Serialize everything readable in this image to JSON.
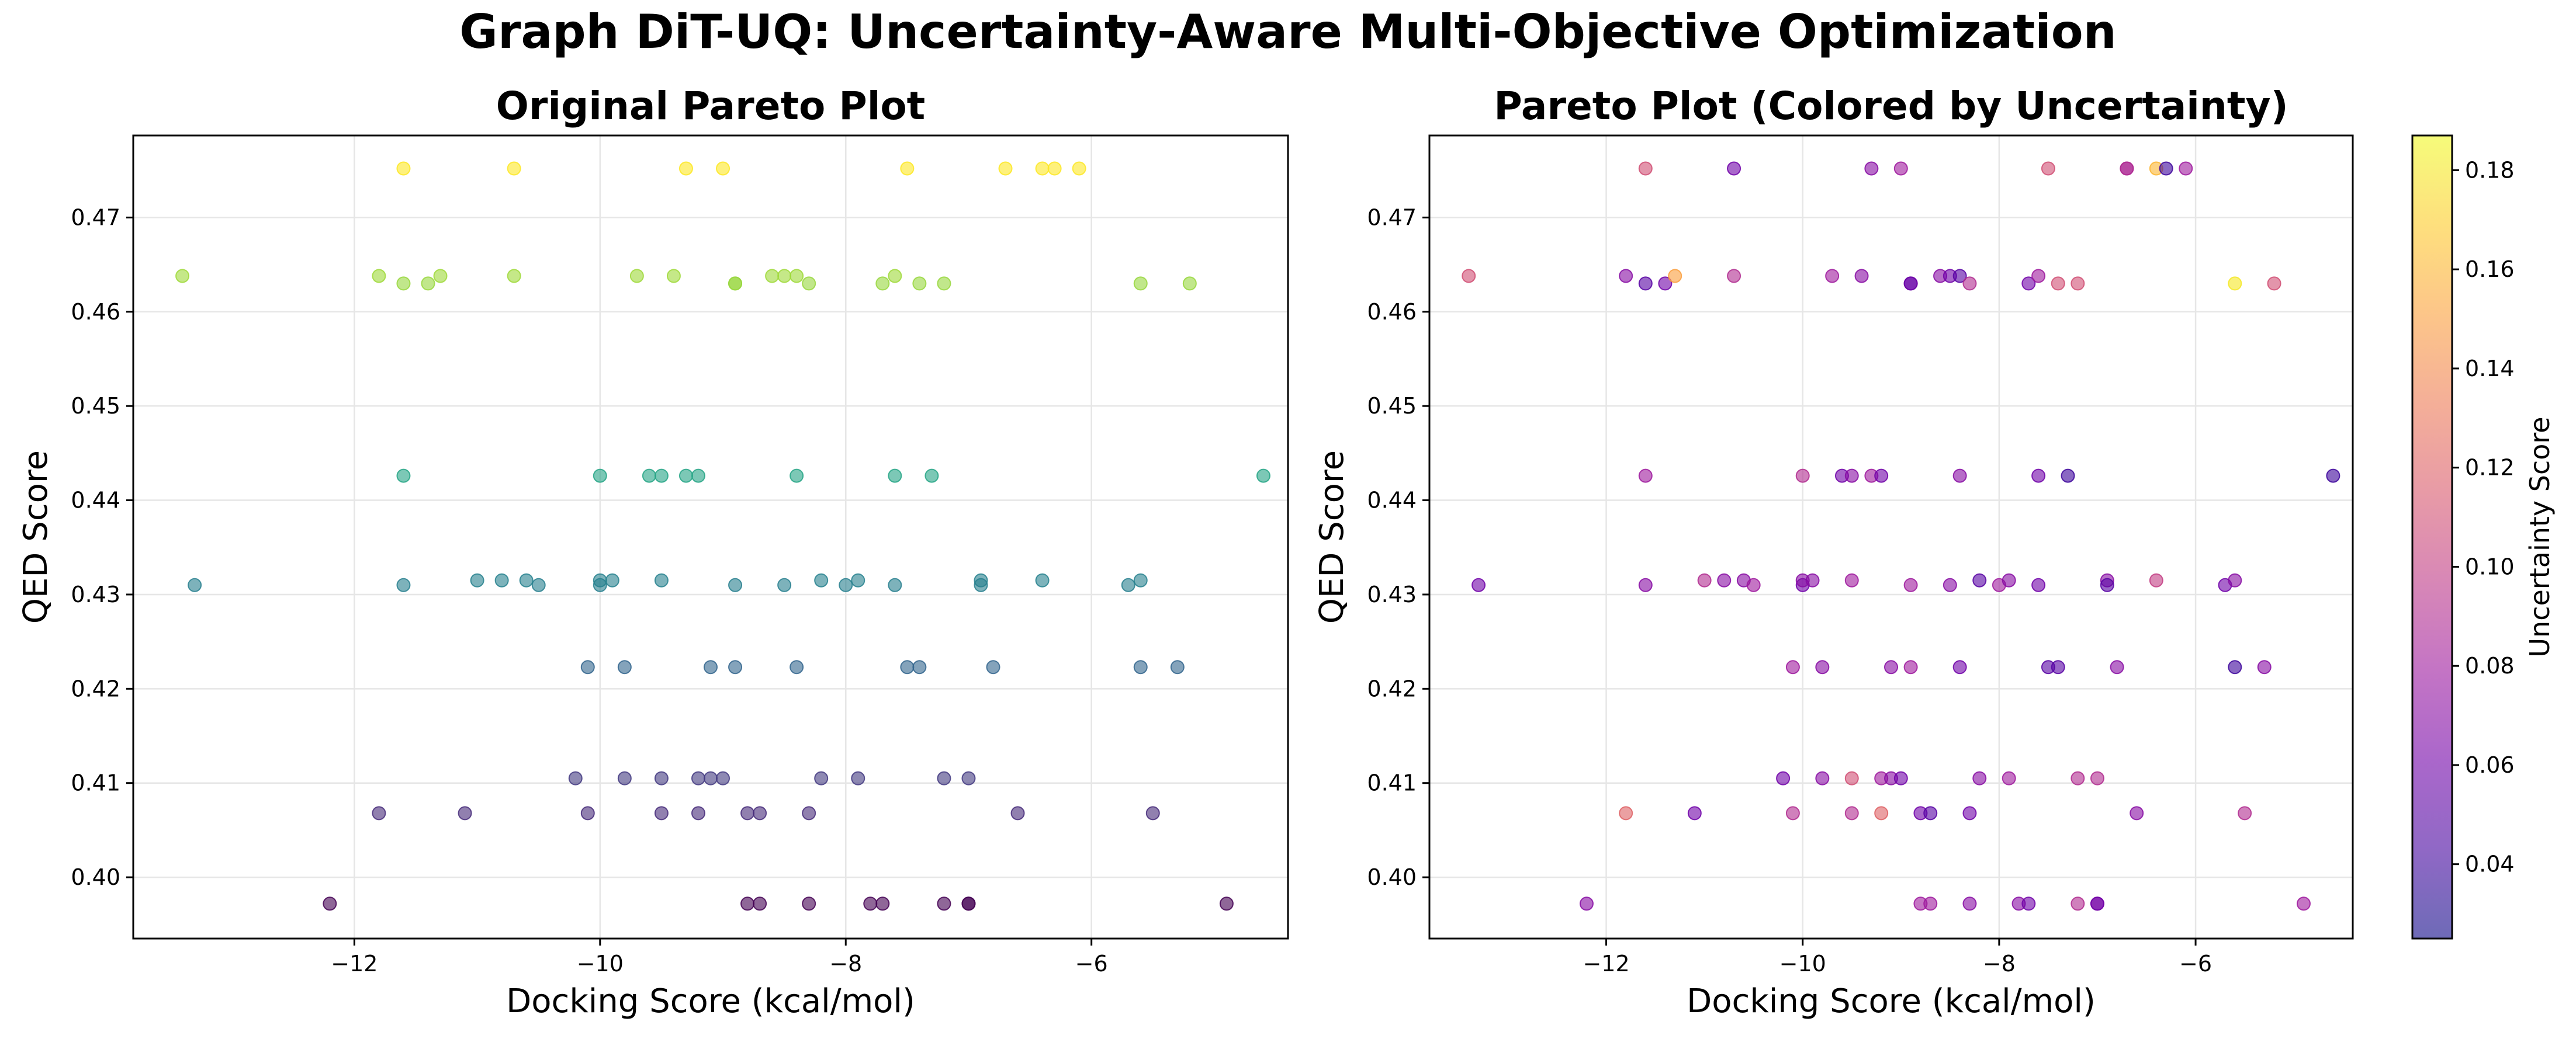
{
  "figure": {
    "title": "Graph DiT-UQ: Uncertainty-Aware Multi-Objective Optimization"
  },
  "colors": {
    "viridis": [
      "#440154",
      "#482878",
      "#3e4989",
      "#31688e",
      "#26828e",
      "#1f9e89",
      "#35b779",
      "#6ece58",
      "#b5de2b",
      "#fde725"
    ],
    "plasma": [
      "#0d0887",
      "#46039f",
      "#7201a8",
      "#9c179e",
      "#bd3786",
      "#d8576b",
      "#ed7953",
      "#fb9f3a",
      "#fdca26",
      "#f0f921"
    ],
    "axes_edge": "#000000",
    "grid": "#e6e6e6"
  },
  "chart_data": [
    {
      "type": "scatter",
      "title": "Original Pareto Plot",
      "xlabel": "Docking Score (kcal/mol)",
      "ylabel": "QED Score",
      "xlim": [
        -13.8,
        -4.4
      ],
      "ylim": [
        0.3935,
        0.4787
      ],
      "xticks": [
        -12,
        -10,
        -8,
        -6
      ],
      "xtick_labels": [
        "−12",
        "−10",
        "−8",
        "−6"
      ],
      "yticks": [
        0.4,
        0.41,
        0.42,
        0.43,
        0.44,
        0.45,
        0.46,
        0.47
      ],
      "ytick_labels": [
        "0.40",
        "0.41",
        "0.42",
        "0.43",
        "0.44",
        "0.45",
        "0.46",
        "0.47"
      ],
      "grid": true,
      "color_by": "y",
      "colormap": "viridis",
      "points": [
        {
          "x": -11.6,
          "y": 0.4752
        },
        {
          "x": -10.7,
          "y": 0.4752
        },
        {
          "x": -9.3,
          "y": 0.4752
        },
        {
          "x": -9.0,
          "y": 0.4752
        },
        {
          "x": -7.5,
          "y": 0.4752
        },
        {
          "x": -6.7,
          "y": 0.4752
        },
        {
          "x": -6.4,
          "y": 0.4752
        },
        {
          "x": -6.3,
          "y": 0.4752
        },
        {
          "x": -6.1,
          "y": 0.4752
        },
        {
          "x": -13.4,
          "y": 0.4638
        },
        {
          "x": -11.8,
          "y": 0.4638
        },
        {
          "x": -11.6,
          "y": 0.463
        },
        {
          "x": -11.4,
          "y": 0.463
        },
        {
          "x": -11.3,
          "y": 0.4638
        },
        {
          "x": -10.7,
          "y": 0.4638
        },
        {
          "x": -9.7,
          "y": 0.4638
        },
        {
          "x": -9.4,
          "y": 0.4638
        },
        {
          "x": -8.9,
          "y": 0.463
        },
        {
          "x": -8.9,
          "y": 0.463
        },
        {
          "x": -8.6,
          "y": 0.4638
        },
        {
          "x": -8.5,
          "y": 0.4638
        },
        {
          "x": -8.4,
          "y": 0.4638
        },
        {
          "x": -8.3,
          "y": 0.463
        },
        {
          "x": -7.7,
          "y": 0.463
        },
        {
          "x": -7.6,
          "y": 0.4638
        },
        {
          "x": -7.4,
          "y": 0.463
        },
        {
          "x": -7.2,
          "y": 0.463
        },
        {
          "x": -5.6,
          "y": 0.463
        },
        {
          "x": -5.2,
          "y": 0.463
        },
        {
          "x": -11.6,
          "y": 0.4426
        },
        {
          "x": -10.0,
          "y": 0.4426
        },
        {
          "x": -9.6,
          "y": 0.4426
        },
        {
          "x": -9.5,
          "y": 0.4426
        },
        {
          "x": -9.3,
          "y": 0.4426
        },
        {
          "x": -9.2,
          "y": 0.4426
        },
        {
          "x": -8.4,
          "y": 0.4426
        },
        {
          "x": -7.6,
          "y": 0.4426
        },
        {
          "x": -7.3,
          "y": 0.4426
        },
        {
          "x": -4.6,
          "y": 0.4426
        },
        {
          "x": -13.3,
          "y": 0.431
        },
        {
          "x": -11.6,
          "y": 0.431
        },
        {
          "x": -11.0,
          "y": 0.4315
        },
        {
          "x": -10.8,
          "y": 0.4315
        },
        {
          "x": -10.6,
          "y": 0.4315
        },
        {
          "x": -10.5,
          "y": 0.431
        },
        {
          "x": -10.0,
          "y": 0.431
        },
        {
          "x": -10.0,
          "y": 0.4315
        },
        {
          "x": -9.9,
          "y": 0.4315
        },
        {
          "x": -9.5,
          "y": 0.4315
        },
        {
          "x": -8.9,
          "y": 0.431
        },
        {
          "x": -8.5,
          "y": 0.431
        },
        {
          "x": -8.2,
          "y": 0.4315
        },
        {
          "x": -8.0,
          "y": 0.431
        },
        {
          "x": -7.9,
          "y": 0.4315
        },
        {
          "x": -7.6,
          "y": 0.431
        },
        {
          "x": -6.9,
          "y": 0.4315
        },
        {
          "x": -6.9,
          "y": 0.431
        },
        {
          "x": -6.4,
          "y": 0.4315
        },
        {
          "x": -5.7,
          "y": 0.431
        },
        {
          "x": -5.6,
          "y": 0.4315
        },
        {
          "x": -10.1,
          "y": 0.4223
        },
        {
          "x": -9.8,
          "y": 0.4223
        },
        {
          "x": -9.1,
          "y": 0.4223
        },
        {
          "x": -8.9,
          "y": 0.4223
        },
        {
          "x": -8.4,
          "y": 0.4223
        },
        {
          "x": -7.5,
          "y": 0.4223
        },
        {
          "x": -7.4,
          "y": 0.4223
        },
        {
          "x": -6.8,
          "y": 0.4223
        },
        {
          "x": -5.6,
          "y": 0.4223
        },
        {
          "x": -5.3,
          "y": 0.4223
        },
        {
          "x": -10.2,
          "y": 0.4105
        },
        {
          "x": -9.8,
          "y": 0.4105
        },
        {
          "x": -9.5,
          "y": 0.4105
        },
        {
          "x": -9.2,
          "y": 0.4105
        },
        {
          "x": -9.1,
          "y": 0.4105
        },
        {
          "x": -9.0,
          "y": 0.4105
        },
        {
          "x": -8.2,
          "y": 0.4105
        },
        {
          "x": -7.9,
          "y": 0.4105
        },
        {
          "x": -7.2,
          "y": 0.4105
        },
        {
          "x": -7.0,
          "y": 0.4105
        },
        {
          "x": -11.8,
          "y": 0.4068
        },
        {
          "x": -11.1,
          "y": 0.4068
        },
        {
          "x": -10.1,
          "y": 0.4068
        },
        {
          "x": -9.5,
          "y": 0.4068
        },
        {
          "x": -9.2,
          "y": 0.4068
        },
        {
          "x": -8.8,
          "y": 0.4068
        },
        {
          "x": -8.7,
          "y": 0.4068
        },
        {
          "x": -8.3,
          "y": 0.4068
        },
        {
          "x": -6.6,
          "y": 0.4068
        },
        {
          "x": -5.5,
          "y": 0.4068
        },
        {
          "x": -12.2,
          "y": 0.3972
        },
        {
          "x": -8.8,
          "y": 0.3972
        },
        {
          "x": -8.7,
          "y": 0.3972
        },
        {
          "x": -8.3,
          "y": 0.3972
        },
        {
          "x": -7.8,
          "y": 0.3972
        },
        {
          "x": -7.7,
          "y": 0.3972
        },
        {
          "x": -7.2,
          "y": 0.3972
        },
        {
          "x": -7.0,
          "y": 0.3972
        },
        {
          "x": -7.0,
          "y": 0.3972
        },
        {
          "x": -4.9,
          "y": 0.3972
        }
      ]
    },
    {
      "type": "scatter",
      "title": "Pareto Plot (Colored by Uncertainty)",
      "xlabel": "Docking Score (kcal/mol)",
      "ylabel": "QED Score",
      "xlim": [
        -13.8,
        -4.4
      ],
      "ylim": [
        0.3935,
        0.4787
      ],
      "xticks": [
        -12,
        -10,
        -8,
        -6
      ],
      "xtick_labels": [
        "−12",
        "−10",
        "−8",
        "−6"
      ],
      "yticks": [
        0.4,
        0.41,
        0.42,
        0.43,
        0.44,
        0.45,
        0.46,
        0.47
      ],
      "ytick_labels": [
        "0.40",
        "0.41",
        "0.42",
        "0.43",
        "0.44",
        "0.45",
        "0.46",
        "0.47"
      ],
      "grid": true,
      "colormap": "plasma",
      "colorbar": {
        "label": "Uncertainty Score",
        "range": [
          0.025,
          0.187
        ],
        "ticks": [
          0.04,
          0.06,
          0.08,
          0.1,
          0.12,
          0.14,
          0.16,
          0.18
        ],
        "tick_labels": [
          "0.04",
          "0.06",
          "0.08",
          "0.10",
          "0.12",
          "0.14",
          "0.16",
          "0.18"
        ]
      },
      "points": [
        {
          "x": -11.6,
          "y": 0.4752,
          "u": 0.11
        },
        {
          "x": -10.7,
          "y": 0.4752,
          "u": 0.06
        },
        {
          "x": -9.3,
          "y": 0.4752,
          "u": 0.07
        },
        {
          "x": -9.0,
          "y": 0.4752,
          "u": 0.08
        },
        {
          "x": -7.5,
          "y": 0.4752,
          "u": 0.11
        },
        {
          "x": -6.7,
          "y": 0.4752,
          "u": 0.08
        },
        {
          "x": -6.7,
          "y": 0.4752,
          "u": 0.09
        },
        {
          "x": -6.4,
          "y": 0.4752,
          "u": 0.16
        },
        {
          "x": -6.3,
          "y": 0.4752,
          "u": 0.04
        },
        {
          "x": -6.1,
          "y": 0.4752,
          "u": 0.08
        },
        {
          "x": -13.4,
          "y": 0.4638,
          "u": 0.11
        },
        {
          "x": -11.8,
          "y": 0.4638,
          "u": 0.07
        },
        {
          "x": -11.6,
          "y": 0.463,
          "u": 0.05
        },
        {
          "x": -11.4,
          "y": 0.463,
          "u": 0.06
        },
        {
          "x": -11.3,
          "y": 0.4638,
          "u": 0.15
        },
        {
          "x": -10.7,
          "y": 0.4638,
          "u": 0.09
        },
        {
          "x": -9.7,
          "y": 0.4638,
          "u": 0.08
        },
        {
          "x": -9.4,
          "y": 0.4638,
          "u": 0.07
        },
        {
          "x": -8.9,
          "y": 0.463,
          "u": 0.05
        },
        {
          "x": -8.9,
          "y": 0.463,
          "u": 0.06
        },
        {
          "x": -8.6,
          "y": 0.4638,
          "u": 0.07
        },
        {
          "x": -8.5,
          "y": 0.4638,
          "u": 0.06
        },
        {
          "x": -8.4,
          "y": 0.4638,
          "u": 0.05
        },
        {
          "x": -8.3,
          "y": 0.463,
          "u": 0.09
        },
        {
          "x": -7.7,
          "y": 0.463,
          "u": 0.06
        },
        {
          "x": -7.6,
          "y": 0.4638,
          "u": 0.08
        },
        {
          "x": -7.4,
          "y": 0.463,
          "u": 0.11
        },
        {
          "x": -7.2,
          "y": 0.463,
          "u": 0.11
        },
        {
          "x": -5.6,
          "y": 0.463,
          "u": 0.18
        },
        {
          "x": -5.2,
          "y": 0.463,
          "u": 0.11
        },
        {
          "x": -11.6,
          "y": 0.4426,
          "u": 0.08
        },
        {
          "x": -10.0,
          "y": 0.4426,
          "u": 0.09
        },
        {
          "x": -9.6,
          "y": 0.4426,
          "u": 0.06
        },
        {
          "x": -9.5,
          "y": 0.4426,
          "u": 0.07
        },
        {
          "x": -9.3,
          "y": 0.4426,
          "u": 0.08
        },
        {
          "x": -9.2,
          "y": 0.4426,
          "u": 0.06
        },
        {
          "x": -8.4,
          "y": 0.4426,
          "u": 0.07
        },
        {
          "x": -7.6,
          "y": 0.4426,
          "u": 0.06
        },
        {
          "x": -7.3,
          "y": 0.4426,
          "u": 0.04
        },
        {
          "x": -4.6,
          "y": 0.4426,
          "u": 0.04
        },
        {
          "x": -13.3,
          "y": 0.431,
          "u": 0.06
        },
        {
          "x": -11.6,
          "y": 0.431,
          "u": 0.07
        },
        {
          "x": -11.0,
          "y": 0.4315,
          "u": 0.09
        },
        {
          "x": -10.8,
          "y": 0.4315,
          "u": 0.07
        },
        {
          "x": -10.6,
          "y": 0.4315,
          "u": 0.07
        },
        {
          "x": -10.5,
          "y": 0.431,
          "u": 0.08
        },
        {
          "x": -10.0,
          "y": 0.431,
          "u": 0.06
        },
        {
          "x": -10.0,
          "y": 0.4315,
          "u": 0.07
        },
        {
          "x": -9.9,
          "y": 0.4315,
          "u": 0.07
        },
        {
          "x": -9.5,
          "y": 0.4315,
          "u": 0.08
        },
        {
          "x": -8.9,
          "y": 0.431,
          "u": 0.08
        },
        {
          "x": -8.5,
          "y": 0.431,
          "u": 0.07
        },
        {
          "x": -8.2,
          "y": 0.4315,
          "u": 0.05
        },
        {
          "x": -8.0,
          "y": 0.431,
          "u": 0.08
        },
        {
          "x": -7.9,
          "y": 0.4315,
          "u": 0.07
        },
        {
          "x": -7.6,
          "y": 0.431,
          "u": 0.06
        },
        {
          "x": -6.9,
          "y": 0.4315,
          "u": 0.07
        },
        {
          "x": -6.9,
          "y": 0.431,
          "u": 0.05
        },
        {
          "x": -6.4,
          "y": 0.4315,
          "u": 0.1
        },
        {
          "x": -5.7,
          "y": 0.431,
          "u": 0.06
        },
        {
          "x": -5.6,
          "y": 0.4315,
          "u": 0.07
        },
        {
          "x": -10.1,
          "y": 0.4223,
          "u": 0.08
        },
        {
          "x": -9.8,
          "y": 0.4223,
          "u": 0.07
        },
        {
          "x": -9.1,
          "y": 0.4223,
          "u": 0.07
        },
        {
          "x": -8.9,
          "y": 0.4223,
          "u": 0.08
        },
        {
          "x": -8.4,
          "y": 0.4223,
          "u": 0.06
        },
        {
          "x": -7.5,
          "y": 0.4223,
          "u": 0.05
        },
        {
          "x": -7.4,
          "y": 0.4223,
          "u": 0.05
        },
        {
          "x": -6.8,
          "y": 0.4223,
          "u": 0.07
        },
        {
          "x": -5.6,
          "y": 0.4223,
          "u": 0.04
        },
        {
          "x": -5.3,
          "y": 0.4223,
          "u": 0.07
        },
        {
          "x": -10.2,
          "y": 0.4105,
          "u": 0.06
        },
        {
          "x": -9.8,
          "y": 0.4105,
          "u": 0.07
        },
        {
          "x": -9.5,
          "y": 0.4105,
          "u": 0.11
        },
        {
          "x": -9.2,
          "y": 0.4105,
          "u": 0.08
        },
        {
          "x": -9.1,
          "y": 0.4105,
          "u": 0.07
        },
        {
          "x": -9.0,
          "y": 0.4105,
          "u": 0.06
        },
        {
          "x": -8.2,
          "y": 0.4105,
          "u": 0.07
        },
        {
          "x": -7.9,
          "y": 0.4105,
          "u": 0.08
        },
        {
          "x": -7.2,
          "y": 0.4105,
          "u": 0.09
        },
        {
          "x": -7.0,
          "y": 0.4105,
          "u": 0.09
        },
        {
          "x": -11.8,
          "y": 0.4068,
          "u": 0.12
        },
        {
          "x": -11.1,
          "y": 0.4068,
          "u": 0.06
        },
        {
          "x": -10.1,
          "y": 0.4068,
          "u": 0.09
        },
        {
          "x": -9.5,
          "y": 0.4068,
          "u": 0.09
        },
        {
          "x": -9.2,
          "y": 0.4068,
          "u": 0.12
        },
        {
          "x": -8.8,
          "y": 0.4068,
          "u": 0.06
        },
        {
          "x": -8.7,
          "y": 0.4068,
          "u": 0.05
        },
        {
          "x": -8.3,
          "y": 0.4068,
          "u": 0.06
        },
        {
          "x": -6.6,
          "y": 0.4068,
          "u": 0.07
        },
        {
          "x": -5.5,
          "y": 0.4068,
          "u": 0.09
        },
        {
          "x": -12.2,
          "y": 0.3972,
          "u": 0.07
        },
        {
          "x": -8.8,
          "y": 0.3972,
          "u": 0.08
        },
        {
          "x": -8.7,
          "y": 0.3972,
          "u": 0.08
        },
        {
          "x": -8.3,
          "y": 0.3972,
          "u": 0.07
        },
        {
          "x": -7.8,
          "y": 0.3972,
          "u": 0.07
        },
        {
          "x": -7.7,
          "y": 0.3972,
          "u": 0.06
        },
        {
          "x": -7.2,
          "y": 0.3972,
          "u": 0.09
        },
        {
          "x": -7.0,
          "y": 0.3972,
          "u": 0.07
        },
        {
          "x": -7.0,
          "y": 0.3972,
          "u": 0.06
        },
        {
          "x": -4.9,
          "y": 0.3972,
          "u": 0.08
        }
      ]
    }
  ]
}
